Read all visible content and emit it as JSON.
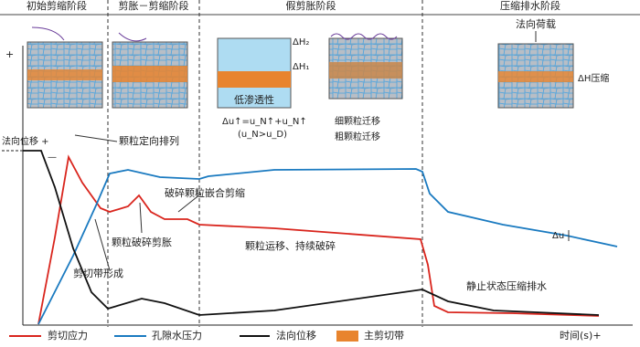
{
  "stages": [
    "初始剪缩阶段",
    "剪胀－剪缩阶段",
    "假剪胀阶段",
    "压缩排水阶段"
  ],
  "axis": {
    "y_plus": "+",
    "normal_disp": "法向位移 +",
    "minus": "—",
    "time": "时间(s)+"
  },
  "annotations": {
    "orient": "颗粒定向排列",
    "interlock": "破碎颗粒嵌合剪缩",
    "crush_dilate": "颗粒破碎剪胀",
    "migrate": "颗粒运移、持续破碎",
    "band_form": "剪切带形成",
    "static": "静止状态压缩排水",
    "du": "Δu"
  },
  "insets": {
    "dh2": "ΔH₂",
    "dh1": "ΔH₁",
    "low_perm": "低渗透性",
    "du_eq": "Δu↑=u_N↑+u_N↑",
    "cond": "(u_N>u_D)",
    "fine": "细颗粒迁移",
    "coarse": "粗颗粒迁移",
    "load": "法向荷载",
    "dh_comp": "ΔH压缩"
  },
  "legend": [
    "剪切应力",
    "孔隙水压力",
    "法向位移",
    "主剪切带"
  ]
}
